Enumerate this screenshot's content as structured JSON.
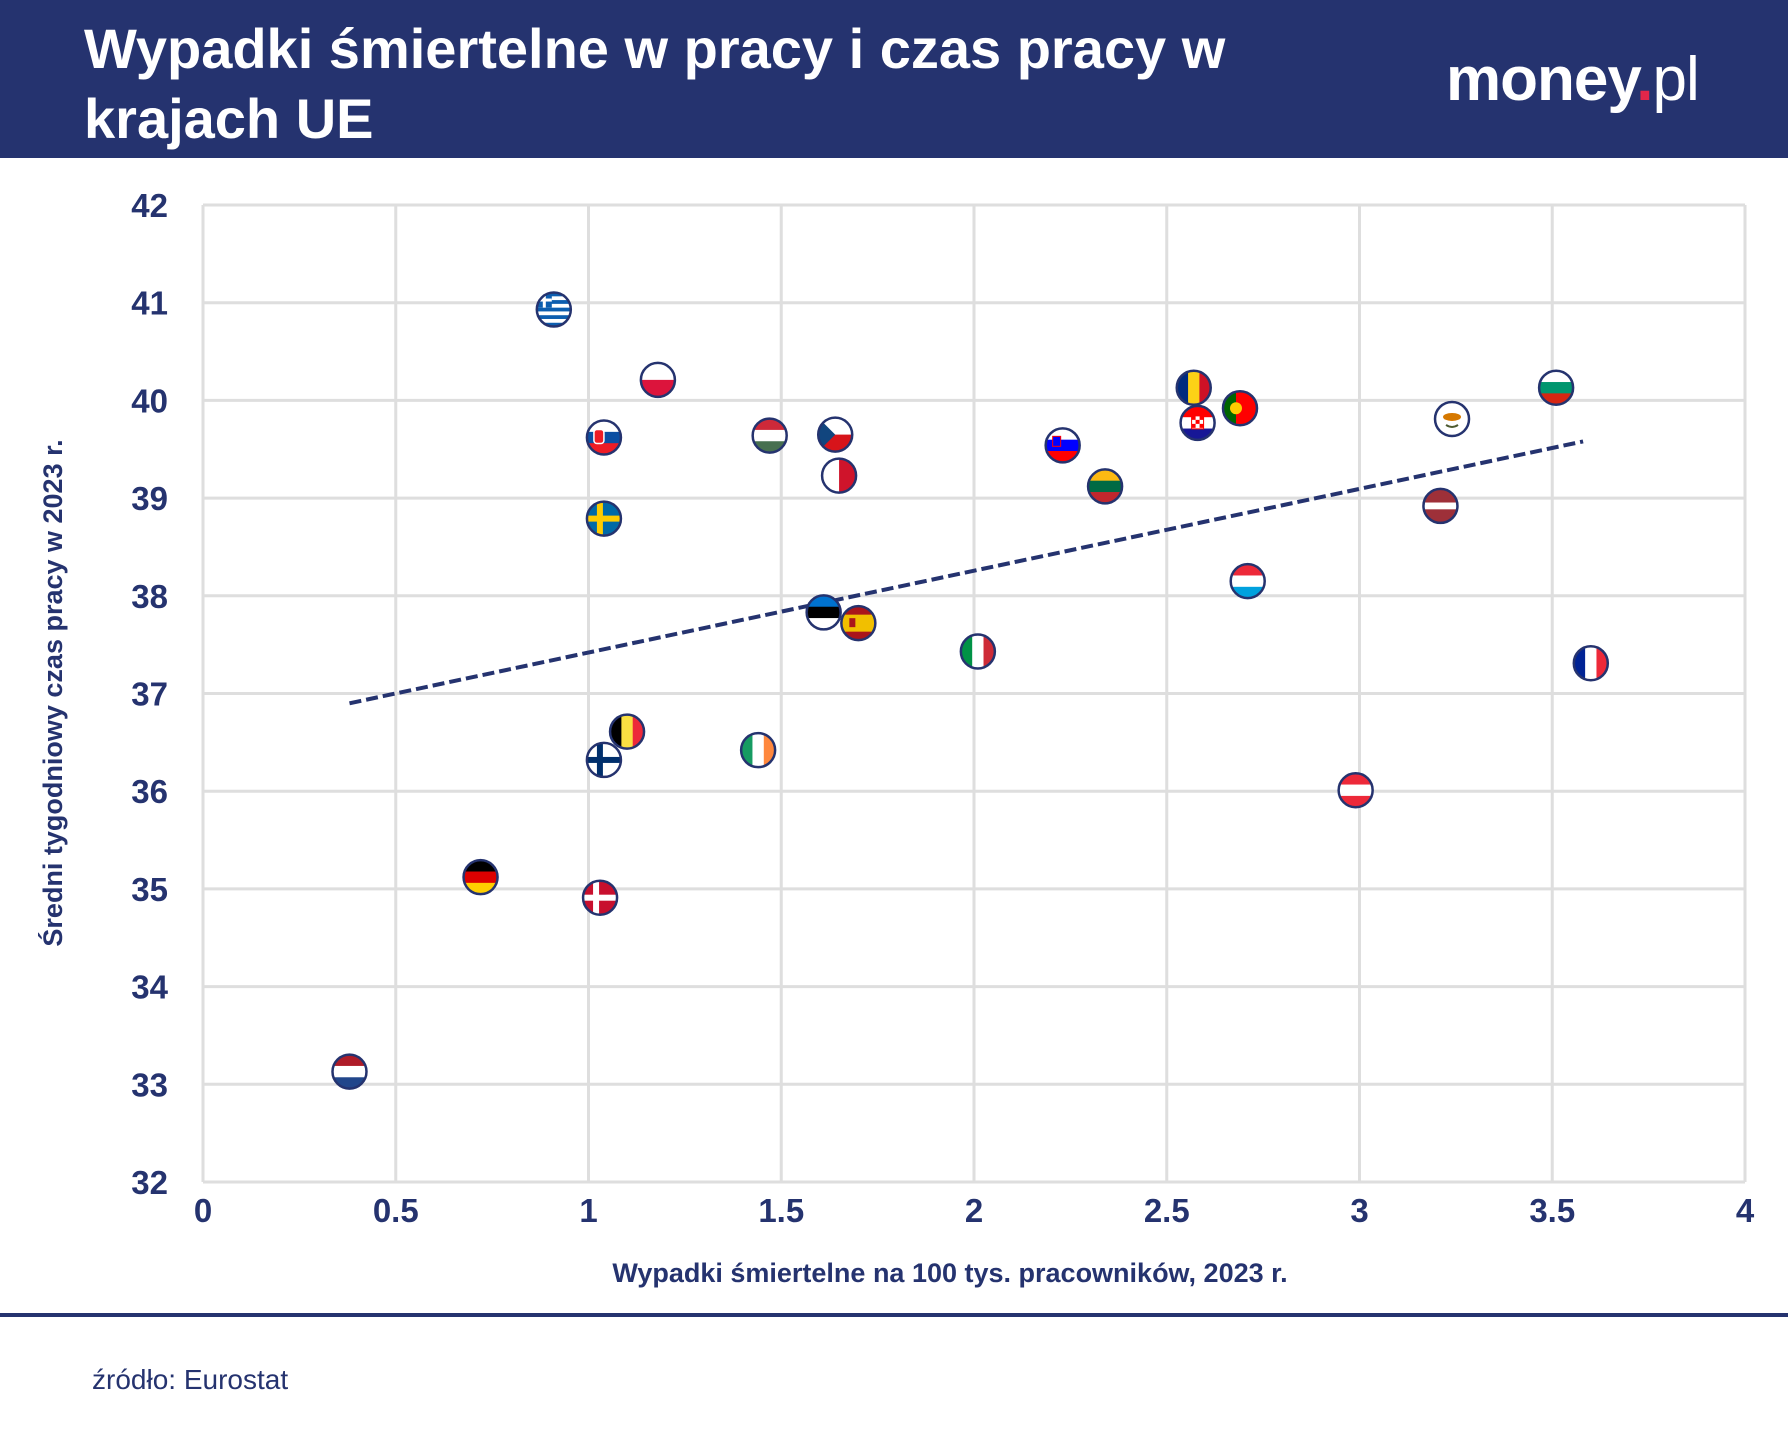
{
  "header": {
    "title": "Wypadki śmiertelne w pracy i czas pracy w krajach UE",
    "logo": "money.pl"
  },
  "source": "źródło: Eurostat",
  "colors": {
    "navy": "#25336f",
    "grid": "#dedede",
    "logo_dot": "#e3264a"
  },
  "chart_data": {
    "type": "scatter",
    "title": "Wypadki śmiertelne w pracy i czas pracy w krajach UE",
    "xlabel": "Wypadki śmiertelne na 100 tys. pracowników, 2023 r.",
    "ylabel": "Średni tygodniowy czas pracy w 2023 r.",
    "xlim": [
      0,
      4
    ],
    "ylim": [
      32,
      42
    ],
    "xticks": [
      "0",
      "0.5",
      "1",
      "1.5",
      "2",
      "2.5",
      "3",
      "3.5",
      "4"
    ],
    "yticks": [
      "32",
      "33",
      "34",
      "35",
      "36",
      "37",
      "38",
      "39",
      "40",
      "41",
      "42"
    ],
    "grid": true,
    "marker": "country-flag",
    "points": [
      {
        "country": "Greece",
        "x": 0.91,
        "y": 40.93,
        "flag": "greece"
      },
      {
        "country": "Poland",
        "x": 1.18,
        "y": 40.21,
        "flag": "poland"
      },
      {
        "country": "Slovakia",
        "x": 1.04,
        "y": 39.62,
        "flag": "slovakia"
      },
      {
        "country": "Sweden",
        "x": 1.04,
        "y": 38.79,
        "flag": "sweden"
      },
      {
        "country": "Hungary",
        "x": 1.47,
        "y": 39.64,
        "flag": "hungary"
      },
      {
        "country": "Czechia",
        "x": 1.64,
        "y": 39.65,
        "flag": "czechia"
      },
      {
        "country": "Malta",
        "x": 1.65,
        "y": 39.23,
        "flag": "malta"
      },
      {
        "country": "Estonia",
        "x": 1.61,
        "y": 37.83,
        "flag": "estonia"
      },
      {
        "country": "Spain",
        "x": 1.7,
        "y": 37.72,
        "flag": "spain"
      },
      {
        "country": "Italy",
        "x": 2.01,
        "y": 37.43,
        "flag": "italy"
      },
      {
        "country": "Slovenia",
        "x": 2.23,
        "y": 39.54,
        "flag": "slovenia"
      },
      {
        "country": "Lithuania",
        "x": 2.34,
        "y": 39.12,
        "flag": "lithuania"
      },
      {
        "country": "Romania",
        "x": 2.57,
        "y": 40.13,
        "flag": "romania"
      },
      {
        "country": "Croatia",
        "x": 2.58,
        "y": 39.77,
        "flag": "croatia"
      },
      {
        "country": "Portugal",
        "x": 2.69,
        "y": 39.92,
        "flag": "portugal"
      },
      {
        "country": "Luxembourg",
        "x": 2.71,
        "y": 38.15,
        "flag": "luxembourg"
      },
      {
        "country": "Cyprus",
        "x": 3.24,
        "y": 39.81,
        "flag": "cyprus"
      },
      {
        "country": "Latvia",
        "x": 3.21,
        "y": 38.92,
        "flag": "latvia"
      },
      {
        "country": "Bulgaria",
        "x": 3.51,
        "y": 40.13,
        "flag": "bulgaria"
      },
      {
        "country": "France",
        "x": 3.6,
        "y": 37.31,
        "flag": "france"
      },
      {
        "country": "Austria",
        "x": 2.99,
        "y": 36.01,
        "flag": "austria"
      },
      {
        "country": "Belgium",
        "x": 1.1,
        "y": 36.61,
        "flag": "belgium"
      },
      {
        "country": "Finland",
        "x": 1.04,
        "y": 36.32,
        "flag": "finland"
      },
      {
        "country": "Ireland",
        "x": 1.44,
        "y": 36.42,
        "flag": "ireland"
      },
      {
        "country": "Germany",
        "x": 0.72,
        "y": 35.12,
        "flag": "germany"
      },
      {
        "country": "Denmark",
        "x": 1.03,
        "y": 34.91,
        "flag": "denmark"
      },
      {
        "country": "Netherlands",
        "x": 0.38,
        "y": 33.13,
        "flag": "netherlands"
      }
    ],
    "trendline": {
      "style": "dashed",
      "from": {
        "x": 0.38,
        "y": 36.9
      },
      "to": {
        "x": 3.58,
        "y": 39.58
      }
    }
  }
}
